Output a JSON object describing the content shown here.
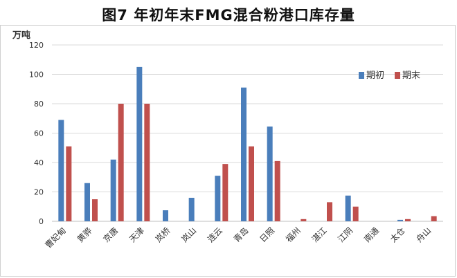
{
  "chart_data": {
    "type": "bar",
    "title": "图7  年初年末FMG混合粉港口库存量",
    "ylabel": "万吨",
    "xlabel": "",
    "ylim": [
      0,
      120
    ],
    "yticks": [
      0,
      20,
      40,
      60,
      80,
      100,
      120
    ],
    "grid": true,
    "legend_position": "top-right",
    "categories": [
      "曹妃甸",
      "黄骅",
      "京唐",
      "天津",
      "岚桥",
      "岚山",
      "连云",
      "青岛",
      "日照",
      "福州",
      "湛江",
      "江阴",
      "南通",
      "太仓",
      "舟山"
    ],
    "series": [
      {
        "name": "期初",
        "color": "#4a7ebb",
        "values": [
          69,
          26,
          42,
          105,
          7.5,
          16,
          31,
          91,
          64.5,
          0,
          0,
          17.5,
          0,
          1,
          0
        ]
      },
      {
        "name": "期末",
        "color": "#c0504d",
        "values": [
          51,
          15,
          80,
          80,
          0,
          0,
          39,
          51,
          41,
          1.5,
          13,
          10,
          0,
          1.5,
          3.5
        ]
      }
    ]
  }
}
